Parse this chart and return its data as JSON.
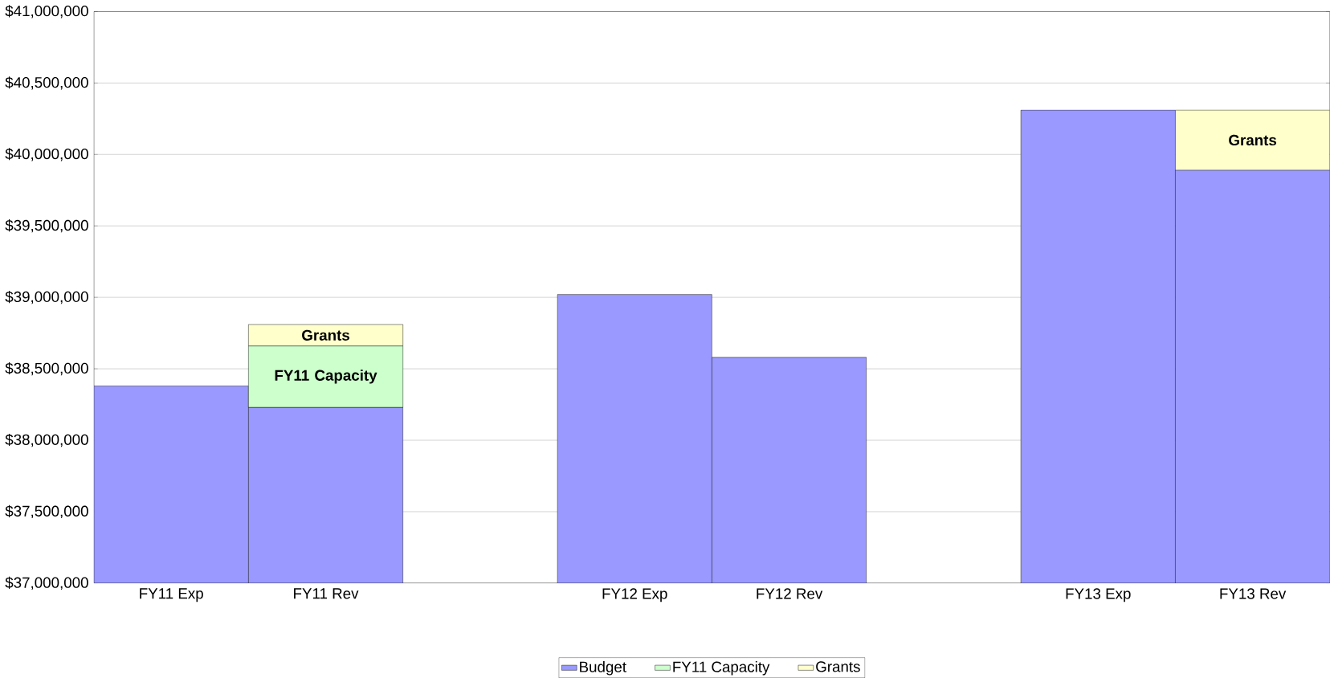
{
  "chart_data": {
    "type": "bar",
    "categories": [
      "FY11 Exp",
      "FY11 Rev",
      null,
      "FY12 Exp",
      "FY12 Rev",
      null,
      "FY13 Exp",
      "FY13 Rev"
    ],
    "series": [
      {
        "name": "Budget",
        "color": "#9999ff",
        "values": [
          38380000,
          38230000,
          null,
          39020000,
          38580000,
          null,
          40310000,
          39890000
        ]
      },
      {
        "name": "FY11 Capacity",
        "color": "#ccffcc",
        "values": [
          null,
          430000,
          null,
          null,
          null,
          null,
          null,
          null
        ],
        "base": [
          null,
          38230000,
          null,
          null,
          null,
          null,
          null,
          null
        ],
        "value_labels": [
          null,
          "FY11 Capacity",
          null,
          null,
          null,
          null,
          null,
          null
        ]
      },
      {
        "name": "Grants",
        "color": "#ffffcc",
        "values": [
          null,
          150000,
          null,
          null,
          null,
          null,
          null,
          420000
        ],
        "base": [
          null,
          38660000,
          null,
          null,
          null,
          null,
          null,
          39890000
        ],
        "value_labels": [
          null,
          "Grants",
          null,
          null,
          null,
          null,
          null,
          "Grants"
        ]
      }
    ],
    "ylim": [
      37000000,
      41000000
    ],
    "yticks": [
      {
        "value": 37000000,
        "label": "$37,000,000"
      },
      {
        "value": 37500000,
        "label": "$37,500,000"
      },
      {
        "value": 38000000,
        "label": "$38,000,000"
      },
      {
        "value": 38500000,
        "label": "$38,500,000"
      },
      {
        "value": 39000000,
        "label": "$39,000,000"
      },
      {
        "value": 39500000,
        "label": "$39,500,000"
      },
      {
        "value": 40000000,
        "label": "$40,000,000"
      },
      {
        "value": 40500000,
        "label": "$40,500,000"
      },
      {
        "value": 41000000,
        "label": "$41,000,000"
      }
    ],
    "grid": "y",
    "legend": "bottom"
  }
}
